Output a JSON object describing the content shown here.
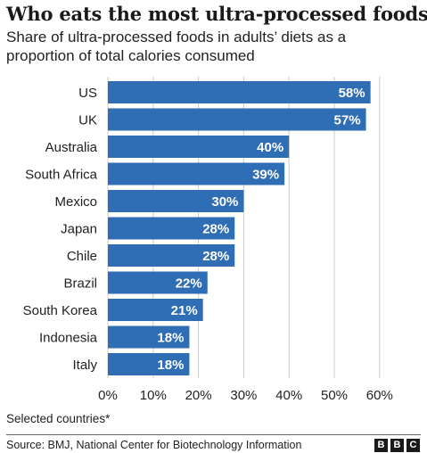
{
  "header": {
    "title": "Who eats the most ultra-processed foods?",
    "subtitle": "Share of ultra-processed foods in adults’ diets as a proportion of total calories consumed"
  },
  "footer": {
    "footnote": "Selected countries*",
    "source": "Source: BMJ, National Center for Biotechnology Information",
    "brand_letters": [
      "B",
      "B",
      "C"
    ]
  },
  "colors": {
    "bar": "#2f6eb5",
    "bar_label": "#ffffff",
    "grid": "#cccccc",
    "text": "#222222"
  },
  "chart_data": {
    "type": "bar",
    "orientation": "horizontal",
    "title": "Who eats the most ultra-processed foods?",
    "subtitle": "Share of ultra-processed foods in adults’ diets as a proportion of total calories consumed",
    "xlabel": "",
    "ylabel": "",
    "categories": [
      "US",
      "UK",
      "Australia",
      "South Africa",
      "Mexico",
      "Japan",
      "Chile",
      "Brazil",
      "South Korea",
      "Indonesia",
      "Italy"
    ],
    "values": [
      58,
      57,
      40,
      39,
      30,
      28,
      28,
      22,
      21,
      18,
      18
    ],
    "value_labels": [
      "58%",
      "57%",
      "40%",
      "39%",
      "30%",
      "28%",
      "28%",
      "22%",
      "21%",
      "18%",
      "18%"
    ],
    "xlim": [
      0,
      60
    ],
    "xticks": [
      0,
      10,
      20,
      30,
      40,
      50,
      60
    ],
    "xtick_labels": [
      "0%",
      "10%",
      "20%",
      "30%",
      "40%",
      "50%",
      "60%"
    ],
    "grid": true,
    "legend": "none"
  }
}
